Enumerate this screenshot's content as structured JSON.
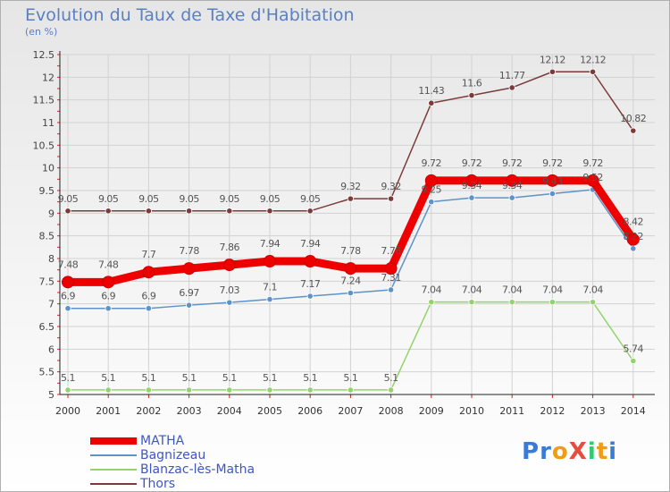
{
  "chart_data": {
    "type": "line",
    "title": "Evolution du Taux de Taxe d'Habitation",
    "unit_label": "(en %)",
    "x": [
      "2000",
      "2001",
      "2002",
      "2003",
      "2004",
      "2005",
      "2006",
      "2007",
      "2008",
      "2009",
      "2010",
      "2011",
      "2012",
      "2013",
      "2014"
    ],
    "yticks": [
      "5",
      "5.5",
      "6",
      "6.5",
      "7",
      "7.5",
      "8",
      "8.5",
      "9",
      "9.5",
      "10",
      "10.5",
      "11",
      "11.5",
      "12",
      "12.5"
    ],
    "ylim": [
      5,
      12.5
    ],
    "grid": true,
    "legend_position": "bottom-left",
    "series": [
      {
        "name": "MATHA",
        "color": "#ee0000",
        "values": [
          7.48,
          7.48,
          7.7,
          7.78,
          7.86,
          7.94,
          7.94,
          7.78,
          7.78,
          9.72,
          9.72,
          9.72,
          9.72,
          9.72,
          8.42
        ],
        "labels": [
          "7.48",
          "7.48",
          "7.7",
          "7.78",
          "7.86",
          "7.94",
          "7.94",
          "7.78",
          "7.78",
          "9.72",
          "9.72",
          "9.72",
          "9.72",
          "9.72",
          "8.42"
        ]
      },
      {
        "name": "Bagnizeau",
        "color": "#5d93c9",
        "values": [
          6.9,
          6.9,
          6.9,
          6.97,
          7.03,
          7.1,
          7.17,
          7.24,
          7.31,
          9.25,
          9.34,
          9.34,
          9.43,
          9.52,
          8.22
        ],
        "labels": [
          "6.9",
          "6.9",
          "6.9",
          "6.97",
          "7.03",
          "7.1",
          "7.17",
          "7.24",
          "7.31",
          "9.25",
          "9.34",
          "9.34",
          "9.43",
          "9.52",
          "8.22"
        ]
      },
      {
        "name": "Blanzac-lès-Matha",
        "color": "#94d36b",
        "values": [
          5.1,
          5.1,
          5.1,
          5.1,
          5.1,
          5.1,
          5.1,
          5.1,
          5.1,
          7.04,
          7.04,
          7.04,
          7.04,
          7.04,
          5.74
        ],
        "labels": [
          "5.1",
          "5.1",
          "5.1",
          "5.1",
          "5.1",
          "5.1",
          "5.1",
          "5.1",
          "5.1",
          "7.04",
          "7.04",
          "7.04",
          "7.04",
          "7.04",
          "5.74"
        ]
      },
      {
        "name": "Thors",
        "color": "#7b3b3b",
        "values": [
          9.05,
          9.05,
          9.05,
          9.05,
          9.05,
          9.05,
          9.05,
          9.32,
          9.32,
          11.43,
          11.6,
          11.77,
          12.12,
          12.12,
          10.82
        ],
        "labels": [
          "9.05",
          "9.05",
          "9.05",
          "9.05",
          "9.05",
          "9.05",
          "9.05",
          "9.32",
          "9.32",
          "11.43",
          "11.6",
          "11.77",
          "12.12",
          "12.12",
          "10.82"
        ]
      }
    ]
  },
  "logo": {
    "text": "ProXiti",
    "letter_colors": [
      "#3a7bd5",
      "#3a7bd5",
      "#f39c12",
      "#e74c3c",
      "#2ecc71",
      "#f39c12",
      "#3a7bd5"
    ]
  }
}
